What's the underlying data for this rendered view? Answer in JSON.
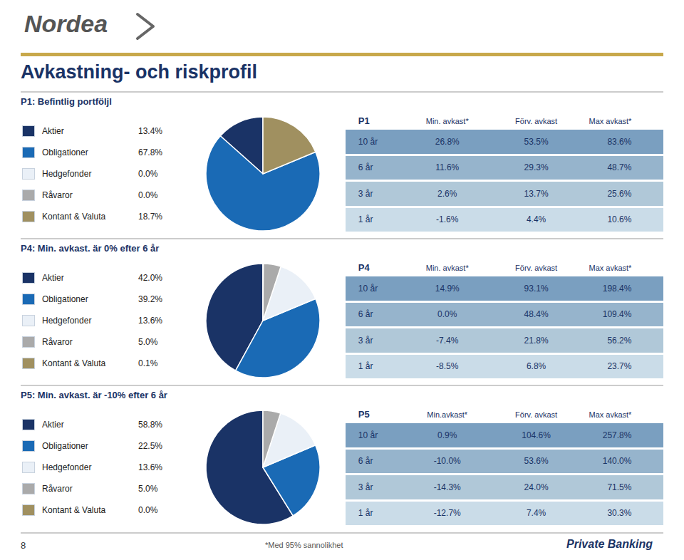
{
  "title": "Avkastning- och riskprofil",
  "annotations": [
    "Nordea",
    "8",
    "*Med 95% sannolikhet",
    "Private Banking"
  ],
  "chart_data": [
    {
      "type": "pie",
      "title": "P1: Befintlig portföljl",
      "categories": [
        "Aktier",
        "Obligationer",
        "Hedgefonder",
        "Råvaror",
        "Kontant & Valuta"
      ],
      "values": [
        13.4,
        67.8,
        0.0,
        0.0,
        18.7
      ],
      "value_labels": [
        "13.4%",
        "67.8%",
        "0.0%",
        "0.0%",
        "18.7%"
      ],
      "colors": [
        "#1a3366",
        "#1a6ab5",
        "#eaf0f7",
        "#aaaaaa",
        "#a09060"
      ],
      "legend": "left",
      "table": {
        "id": "P1",
        "header": [
          "Min. avkast*",
          "Förv. avkast",
          "Max avkast*"
        ],
        "rows": [
          [
            "10 år",
            "26.8%",
            "53.5%",
            "83.6%"
          ],
          [
            "6 år",
            "11.6%",
            "29.3%",
            "48.7%"
          ],
          [
            "3 år",
            "2.6%",
            "13.7%",
            "25.6%"
          ],
          [
            "1 år",
            "-1.6%",
            "4.4%",
            "10.6%"
          ]
        ],
        "row_colors": [
          "#7a9fc0",
          "#96b4cc",
          "#b0c8d8",
          "#cadce8"
        ]
      }
    },
    {
      "type": "pie",
      "title": "P4: Min. avkast. är 0% efter 6 år",
      "categories": [
        "Aktier",
        "Obligationer",
        "Hedgefonder",
        "Råvaror",
        "Kontant & Valuta"
      ],
      "values": [
        42.0,
        39.2,
        13.6,
        5.0,
        0.1
      ],
      "value_labels": [
        "42.0%",
        "39.2%",
        "13.6%",
        "5.0%",
        "0.1%"
      ],
      "colors": [
        "#1a3366",
        "#1a6ab5",
        "#eaf0f7",
        "#aaaaaa",
        "#a09060"
      ],
      "legend": "left",
      "table": {
        "id": "P4",
        "header": [
          "Min. avkast*",
          "Förv. avkast",
          "Max avkast*"
        ],
        "rows": [
          [
            "10 år",
            "14.9%",
            "93.1%",
            "198.4%"
          ],
          [
            "6 år",
            "0.0%",
            "48.4%",
            "109.4%"
          ],
          [
            "3 år",
            "-7.4%",
            "21.8%",
            "56.2%"
          ],
          [
            "1 år",
            "-8.5%",
            "6.8%",
            "23.7%"
          ]
        ],
        "row_colors": [
          "#7a9fc0",
          "#96b4cc",
          "#b0c8d8",
          "#cadce8"
        ]
      }
    },
    {
      "type": "pie",
      "title": "P5: Min. avkast. är -10% efter 6 år",
      "categories": [
        "Aktier",
        "Obligationer",
        "Hedgefonder",
        "Råvaror",
        "Kontant & Valuta"
      ],
      "values": [
        58.8,
        22.5,
        13.6,
        5.0,
        0.0
      ],
      "value_labels": [
        "58.8%",
        "22.5%",
        "13.6%",
        "5.0%",
        "0.0%"
      ],
      "colors": [
        "#1a3366",
        "#1a6ab5",
        "#eaf0f7",
        "#aaaaaa",
        "#a09060"
      ],
      "legend": "left",
      "table": {
        "id": "P5",
        "header": [
          "Min.avkast*",
          "Förv. avkast",
          "Max avkast*"
        ],
        "rows": [
          [
            "10 år",
            "0.9%",
            "104.6%",
            "257.8%"
          ],
          [
            "6 år",
            "-10.0%",
            "53.6%",
            "140.0%"
          ],
          [
            "3 år",
            "-14.3%",
            "24.0%",
            "71.5%"
          ],
          [
            "1 år",
            "-12.7%",
            "7.4%",
            "30.3%"
          ]
        ],
        "row_colors": [
          "#7a9fc0",
          "#96b4cc",
          "#b0c8d8",
          "#cadce8"
        ]
      }
    }
  ]
}
